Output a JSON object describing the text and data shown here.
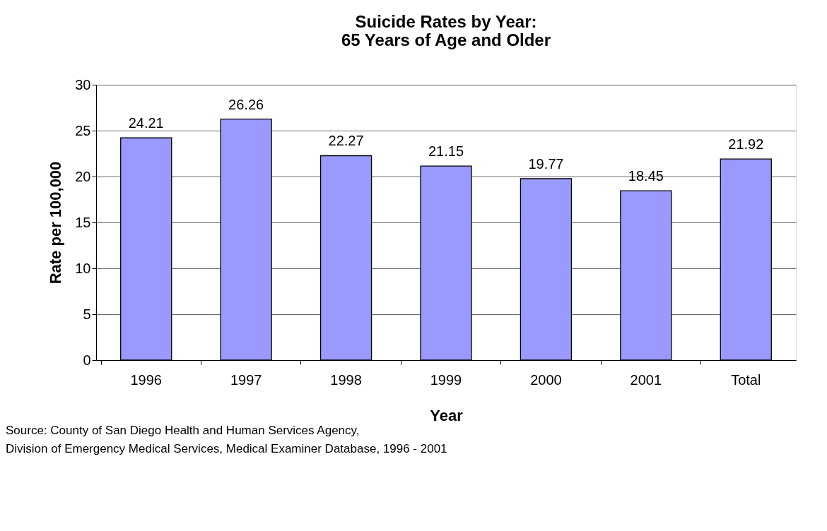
{
  "chart_data": {
    "type": "bar",
    "title": "Suicide Rates by Year:\n65 Years of Age and Older",
    "xlabel": "Year",
    "ylabel": "Rate per 100,000",
    "categories": [
      "1996",
      "1997",
      "1998",
      "1999",
      "2000",
      "2001",
      "Total"
    ],
    "values": [
      24.21,
      26.26,
      22.27,
      21.15,
      19.77,
      18.45,
      21.92
    ],
    "color": "#9999ff",
    "ylim": [
      0,
      30
    ],
    "yticks": [
      0,
      5,
      10,
      15,
      20,
      25,
      30
    ],
    "grid": "y",
    "data_labels": true,
    "annotations": [
      "Source: County of San Diego Health and Human Services Agency,",
      "Division of Emergency Medical Services, Medical Examiner Database, 1996 - 2001"
    ]
  }
}
